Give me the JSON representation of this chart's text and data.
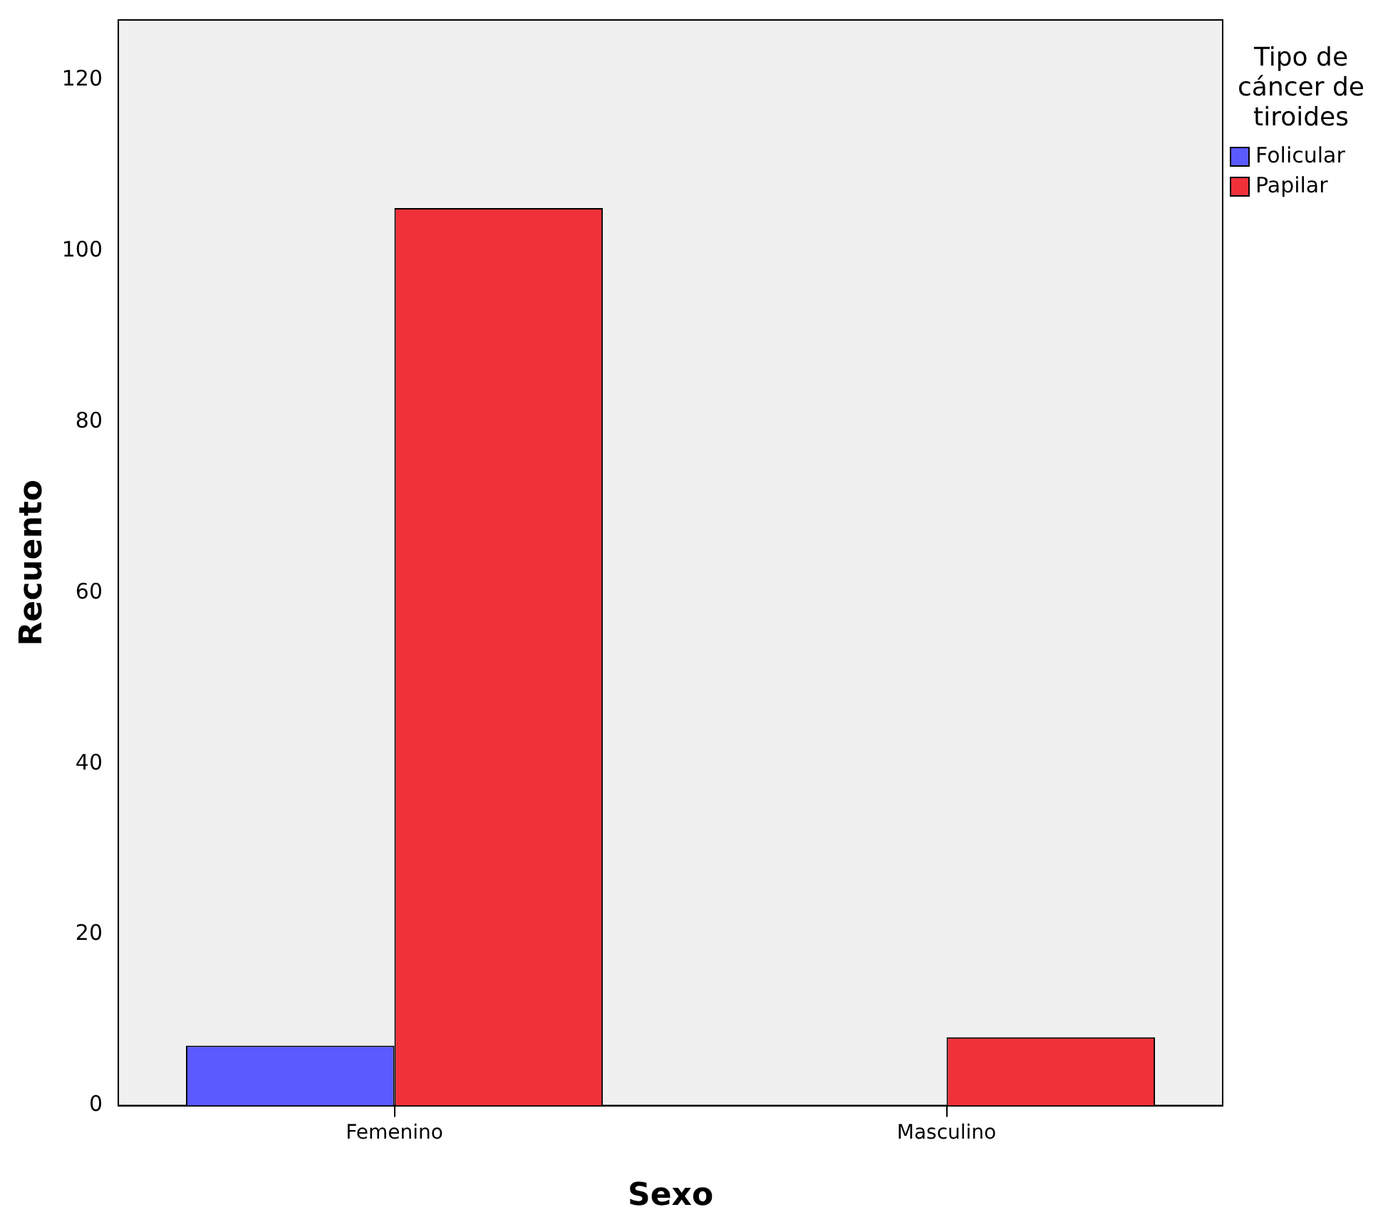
{
  "chart_data": {
    "type": "bar",
    "xlabel": "Sexo",
    "ylabel": "Recuento",
    "legend_title": "Tipo de cáncer de tiroides",
    "categories": [
      "Femenino",
      "Masculino"
    ],
    "series": [
      {
        "name": "Folicular",
        "color": "#5a5aff",
        "values": [
          7,
          0
        ]
      },
      {
        "name": "Papilar",
        "color": "#f0313a",
        "values": [
          105,
          8
        ]
      }
    ],
    "ylim": [
      0,
      127
    ],
    "yticks": [
      0,
      20,
      40,
      60,
      80,
      100,
      120
    ],
    "grid": false,
    "legend": "top right"
  }
}
